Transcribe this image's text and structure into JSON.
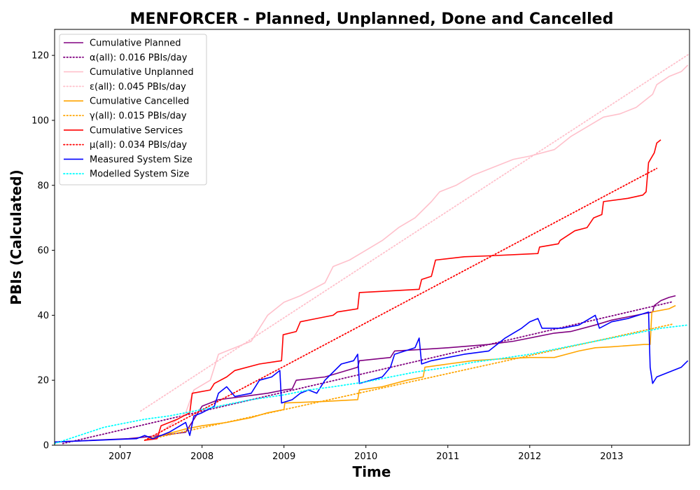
{
  "chart_data": {
    "type": "line",
    "title": "MENFORCER - Planned, Unplanned, Done  and Cancelled",
    "xlabel": "Time",
    "ylabel": "PBIs (Calculated)",
    "xlim": [
      2006.2,
      2013.95
    ],
    "ylim": [
      0,
      128
    ],
    "x_ticks": [
      2007,
      2008,
      2009,
      2010,
      2011,
      2012,
      2013
    ],
    "x_tick_labels": [
      "2007",
      "2008",
      "2009",
      "2010",
      "2011",
      "2012",
      "2013"
    ],
    "y_ticks": [
      0,
      20,
      40,
      60,
      80,
      100,
      120
    ],
    "y_tick_labels": [
      "0",
      "20",
      "40",
      "60",
      "80",
      "100",
      "120"
    ],
    "grid": false,
    "legend_position": "top-left",
    "series": [
      {
        "name": "Cumulative Planned",
        "color": "#800080",
        "style": "solid",
        "points": [
          [
            2006.2,
            1
          ],
          [
            2007.1,
            2
          ],
          [
            2007.5,
            3
          ],
          [
            2007.8,
            4
          ],
          [
            2007.9,
            8
          ],
          [
            2008.0,
            12
          ],
          [
            2008.2,
            14
          ],
          [
            2008.5,
            15
          ],
          [
            2008.8,
            16
          ],
          [
            2009.0,
            17
          ],
          [
            2009.1,
            17.3
          ],
          [
            2009.15,
            20
          ],
          [
            2009.5,
            21
          ],
          [
            2009.9,
            24
          ],
          [
            2009.92,
            26
          ],
          [
            2010.3,
            27
          ],
          [
            2010.35,
            29
          ],
          [
            2010.7,
            29.5
          ],
          [
            2011.0,
            30
          ],
          [
            2011.5,
            31
          ],
          [
            2011.8,
            32
          ],
          [
            2012.0,
            33
          ],
          [
            2012.3,
            34.5
          ],
          [
            2012.5,
            35
          ],
          [
            2012.8,
            37
          ],
          [
            2013.0,
            38.5
          ],
          [
            2013.3,
            40
          ],
          [
            2013.5,
            41
          ],
          [
            2013.52,
            43
          ],
          [
            2013.6,
            44.5
          ],
          [
            2013.7,
            45.5
          ],
          [
            2013.78,
            46
          ]
        ]
      },
      {
        "name": "α(all): 0.016 PBIs/day",
        "color": "#800080",
        "style": "dotted",
        "points": [
          [
            2006.3,
            0.5
          ],
          [
            2013.75,
            44.2
          ]
        ]
      },
      {
        "name": "Cumulative Unplanned",
        "color": "#ffc0cb",
        "style": "solid",
        "points": [
          [
            2007.3,
            1.5
          ],
          [
            2007.5,
            4
          ],
          [
            2007.8,
            10
          ],
          [
            2007.9,
            17
          ],
          [
            2008.1,
            20
          ],
          [
            2008.2,
            28
          ],
          [
            2008.4,
            30
          ],
          [
            2008.6,
            32
          ],
          [
            2008.8,
            40
          ],
          [
            2009.0,
            44
          ],
          [
            2009.2,
            46
          ],
          [
            2009.5,
            50
          ],
          [
            2009.6,
            55
          ],
          [
            2009.8,
            57
          ],
          [
            2010.0,
            60
          ],
          [
            2010.2,
            63
          ],
          [
            2010.4,
            67
          ],
          [
            2010.6,
            70
          ],
          [
            2010.8,
            75
          ],
          [
            2010.9,
            78
          ],
          [
            2011.1,
            80
          ],
          [
            2011.3,
            83
          ],
          [
            2011.5,
            85
          ],
          [
            2011.8,
            88
          ],
          [
            2012.0,
            89
          ],
          [
            2012.3,
            91
          ],
          [
            2012.5,
            95
          ],
          [
            2012.7,
            98
          ],
          [
            2012.9,
            101
          ],
          [
            2013.1,
            102
          ],
          [
            2013.3,
            104
          ],
          [
            2013.5,
            108
          ],
          [
            2013.55,
            111
          ],
          [
            2013.7,
            113.5
          ],
          [
            2013.85,
            115
          ],
          [
            2013.93,
            117
          ]
        ]
      },
      {
        "name": "ε(all): 0.045 PBIs/day",
        "color": "#ffc0cb",
        "style": "dotted",
        "points": [
          [
            2007.25,
            10.5
          ],
          [
            2013.95,
            120.5
          ]
        ]
      },
      {
        "name": "Cumulative Cancelled",
        "color": "#ffa500",
        "style": "solid",
        "points": [
          [
            2007.3,
            1.5
          ],
          [
            2007.5,
            3
          ],
          [
            2007.8,
            5
          ],
          [
            2008.0,
            6
          ],
          [
            2008.3,
            7
          ],
          [
            2008.6,
            8.5
          ],
          [
            2008.8,
            10
          ],
          [
            2009.0,
            11
          ],
          [
            2009.01,
            13
          ],
          [
            2009.5,
            13.5
          ],
          [
            2009.9,
            14
          ],
          [
            2009.92,
            17
          ],
          [
            2010.2,
            18
          ],
          [
            2010.5,
            20
          ],
          [
            2010.7,
            21
          ],
          [
            2010.72,
            24
          ],
          [
            2011.0,
            25
          ],
          [
            2011.3,
            26
          ],
          [
            2011.6,
            26.5
          ],
          [
            2012.0,
            27
          ],
          [
            2012.3,
            27
          ],
          [
            2012.6,
            29
          ],
          [
            2012.8,
            30
          ],
          [
            2013.0,
            30.3
          ],
          [
            2013.4,
            31
          ],
          [
            2013.47,
            31
          ],
          [
            2013.49,
            41
          ],
          [
            2013.7,
            42
          ],
          [
            2013.78,
            43
          ]
        ]
      },
      {
        "name": "γ(all): 0.015 PBIs/day",
        "color": "#ffa500",
        "style": "dotted",
        "points": [
          [
            2007.3,
            1.5
          ],
          [
            2013.75,
            37.3
          ]
        ]
      },
      {
        "name": "Cumulative Services",
        "color": "#ff0000",
        "style": "solid",
        "points": [
          [
            2007.3,
            1.5
          ],
          [
            2007.45,
            2
          ],
          [
            2007.5,
            6
          ],
          [
            2007.7,
            8
          ],
          [
            2007.85,
            10
          ],
          [
            2007.88,
            16
          ],
          [
            2008.1,
            17
          ],
          [
            2008.15,
            19
          ],
          [
            2008.3,
            21
          ],
          [
            2008.4,
            23
          ],
          [
            2008.7,
            25
          ],
          [
            2008.97,
            26
          ],
          [
            2008.99,
            34
          ],
          [
            2009.15,
            35
          ],
          [
            2009.2,
            38
          ],
          [
            2009.4,
            39
          ],
          [
            2009.6,
            40
          ],
          [
            2009.65,
            41
          ],
          [
            2009.9,
            42
          ],
          [
            2009.92,
            47
          ],
          [
            2010.3,
            47.5
          ],
          [
            2010.65,
            48
          ],
          [
            2010.68,
            51
          ],
          [
            2010.8,
            52
          ],
          [
            2010.85,
            57
          ],
          [
            2011.2,
            58
          ],
          [
            2011.5,
            58.3
          ],
          [
            2012.1,
            59
          ],
          [
            2012.12,
            61
          ],
          [
            2012.35,
            62
          ],
          [
            2012.37,
            63
          ],
          [
            2012.55,
            66
          ],
          [
            2012.7,
            67
          ],
          [
            2012.78,
            70
          ],
          [
            2012.88,
            71
          ],
          [
            2012.9,
            75
          ],
          [
            2013.2,
            76
          ],
          [
            2013.38,
            77
          ],
          [
            2013.42,
            78
          ],
          [
            2013.45,
            87
          ],
          [
            2013.52,
            90
          ],
          [
            2013.55,
            93
          ],
          [
            2013.6,
            94
          ]
        ]
      },
      {
        "name": "μ(all): 0.034 PBIs/day",
        "color": "#ff0000",
        "style": "dotted",
        "points": [
          [
            2007.3,
            1.5
          ],
          [
            2013.55,
            85.2
          ]
        ]
      },
      {
        "name": "Measured System Size",
        "color": "#0000ff",
        "style": "solid",
        "points": [
          [
            2006.2,
            1
          ],
          [
            2007.0,
            1.8
          ],
          [
            2007.2,
            2
          ],
          [
            2007.3,
            3
          ],
          [
            2007.4,
            2
          ],
          [
            2007.6,
            4
          ],
          [
            2007.8,
            7
          ],
          [
            2007.85,
            3
          ],
          [
            2007.9,
            9
          ],
          [
            2008.0,
            10
          ],
          [
            2008.15,
            12
          ],
          [
            2008.2,
            16
          ],
          [
            2008.3,
            18
          ],
          [
            2008.4,
            15
          ],
          [
            2008.6,
            16
          ],
          [
            2008.7,
            20
          ],
          [
            2008.85,
            21
          ],
          [
            2008.95,
            23
          ],
          [
            2008.97,
            13
          ],
          [
            2009.1,
            14
          ],
          [
            2009.2,
            16
          ],
          [
            2009.3,
            17
          ],
          [
            2009.4,
            16
          ],
          [
            2009.5,
            20
          ],
          [
            2009.7,
            25
          ],
          [
            2009.85,
            26
          ],
          [
            2009.9,
            28
          ],
          [
            2009.92,
            19
          ],
          [
            2010.2,
            21
          ],
          [
            2010.3,
            24
          ],
          [
            2010.35,
            28
          ],
          [
            2010.6,
            30
          ],
          [
            2010.65,
            33
          ],
          [
            2010.68,
            25
          ],
          [
            2010.8,
            26
          ],
          [
            2011.0,
            27
          ],
          [
            2011.2,
            28
          ],
          [
            2011.5,
            29
          ],
          [
            2011.7,
            33
          ],
          [
            2011.9,
            36
          ],
          [
            2012.0,
            38
          ],
          [
            2012.1,
            39
          ],
          [
            2012.15,
            36
          ],
          [
            2012.4,
            36
          ],
          [
            2012.6,
            37
          ],
          [
            2012.8,
            40
          ],
          [
            2012.85,
            36
          ],
          [
            2013.0,
            38
          ],
          [
            2013.2,
            39
          ],
          [
            2013.45,
            41
          ],
          [
            2013.47,
            24
          ],
          [
            2013.5,
            19
          ],
          [
            2013.55,
            21
          ],
          [
            2013.65,
            22
          ],
          [
            2013.75,
            23
          ],
          [
            2013.85,
            24
          ],
          [
            2013.93,
            26
          ]
        ]
      },
      {
        "name": "Modelled System Size",
        "color": "#00ffff",
        "style": "dotted",
        "points": [
          [
            2006.2,
            0.5
          ],
          [
            2006.5,
            3
          ],
          [
            2006.8,
            5.5
          ],
          [
            2007.0,
            6.5
          ],
          [
            2007.3,
            8
          ],
          [
            2007.6,
            9
          ],
          [
            2008.0,
            11
          ],
          [
            2008.3,
            12.5
          ],
          [
            2008.6,
            14
          ],
          [
            2009.0,
            15.5
          ],
          [
            2009.3,
            17
          ],
          [
            2009.6,
            18
          ],
          [
            2010.0,
            19.5
          ],
          [
            2010.3,
            21
          ],
          [
            2010.6,
            22.5
          ],
          [
            2011.0,
            24
          ],
          [
            2011.3,
            25.5
          ],
          [
            2011.6,
            26.5
          ],
          [
            2012.0,
            28
          ],
          [
            2012.3,
            29.5
          ],
          [
            2012.6,
            31
          ],
          [
            2013.0,
            33
          ],
          [
            2013.3,
            34.5
          ],
          [
            2013.6,
            36
          ],
          [
            2013.93,
            37
          ]
        ]
      }
    ]
  }
}
